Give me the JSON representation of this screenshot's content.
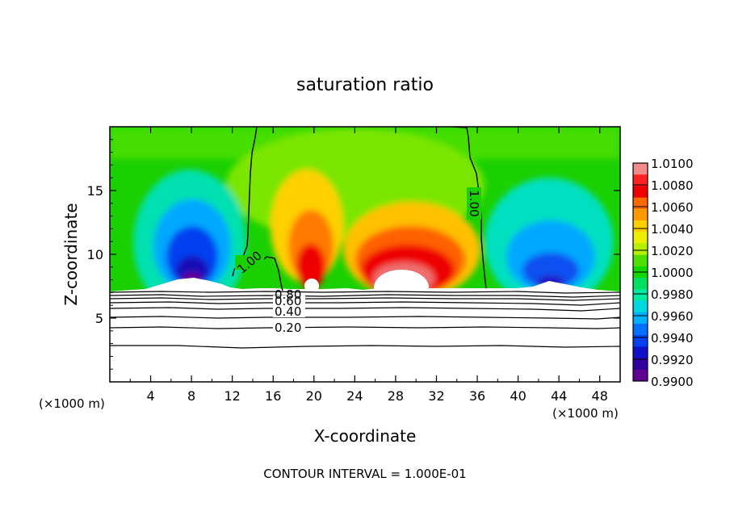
{
  "chart_data": {
    "type": "heatmap",
    "title": "saturation ratio",
    "xlabel": "X-coordinate",
    "ylabel": "Z-coordinate",
    "x_unit_left": "(×1000 m)",
    "x_unit_right": "(×1000 m)",
    "footer": "CONTOUR INTERVAL = 1.000E-01",
    "xlim": [
      0,
      50
    ],
    "ylim": [
      0,
      20
    ],
    "xticks": [
      4,
      8,
      12,
      16,
      20,
      24,
      28,
      32,
      36,
      40,
      44,
      48
    ],
    "yticks": [
      5,
      10,
      15
    ],
    "contour_labels": [
      {
        "label": "1.00",
        "x": 14.0,
        "z": 9.2
      },
      {
        "label": "1.00",
        "x": 35.0,
        "z": 14.0
      },
      {
        "label": "0.80",
        "x": 17.6,
        "z": 6.9
      },
      {
        "label": "0.60",
        "x": 17.6,
        "z": 6.5
      },
      {
        "label": "0.40",
        "x": 17.6,
        "z": 5.5
      },
      {
        "label": "0.20",
        "x": 17.6,
        "z": 4.2
      }
    ],
    "colorbar": {
      "labels": [
        "1.0100",
        "1.0080",
        "1.0060",
        "1.0040",
        "1.0020",
        "1.0000",
        "0.9980",
        "0.9960",
        "0.9940",
        "0.9920",
        "0.9900"
      ],
      "colors": [
        "#f28c8c",
        "#ff2222",
        "#ee0000",
        "#ff6a00",
        "#ff9a00",
        "#ffd000",
        "#eaf000",
        "#b4f000",
        "#50e000",
        "#10d800",
        "#00e060",
        "#00eaa0",
        "#00d8e0",
        "#00b0ff",
        "#0070ff",
        "#0040f0",
        "#1010c8",
        "#3000a0",
        "#600090"
      ]
    }
  }
}
